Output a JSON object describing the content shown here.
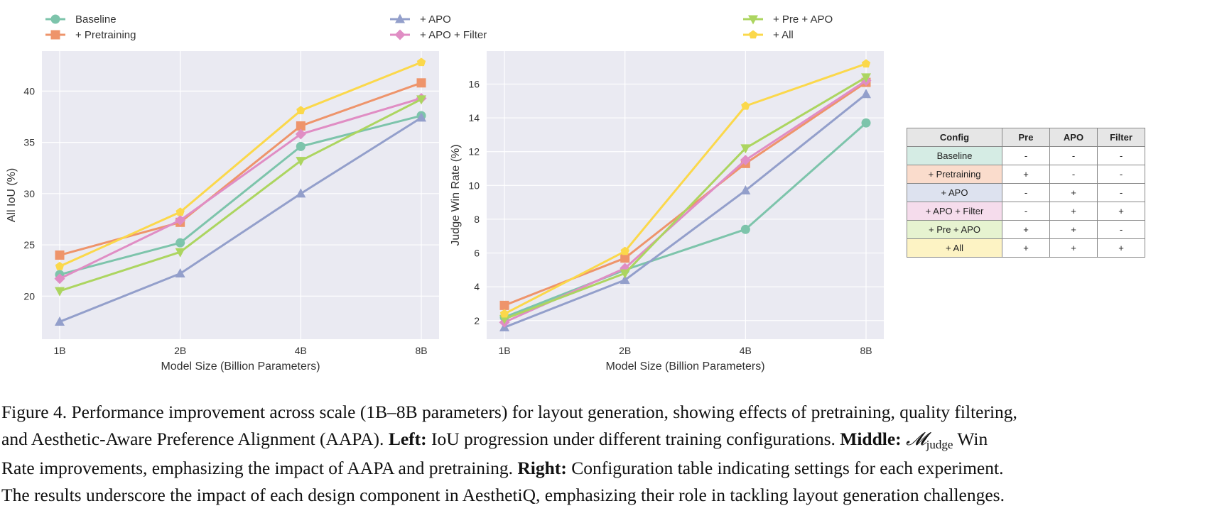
{
  "chart_data": [
    {
      "type": "line",
      "title": "",
      "xlabel": "Model Size (Billion Parameters)",
      "ylabel": "All IoU (%)",
      "categories": [
        "1B",
        "2B",
        "4B",
        "8B"
      ],
      "ylim": [
        15.8,
        43.9
      ],
      "yticks": [
        20,
        25,
        30,
        35,
        40
      ],
      "grid": true,
      "series": [
        {
          "name": "Baseline",
          "values": [
            22.1,
            25.2,
            34.6,
            37.6
          ]
        },
        {
          "name": "+ Pretraining",
          "values": [
            24.0,
            27.2,
            36.6,
            40.8
          ]
        },
        {
          "name": "+ APO",
          "values": [
            17.5,
            22.2,
            30.0,
            37.4
          ]
        },
        {
          "name": "+ APO + Filter",
          "values": [
            21.7,
            27.4,
            35.8,
            39.3
          ]
        },
        {
          "name": "+ Pre + APO",
          "values": [
            20.5,
            24.3,
            33.2,
            39.2
          ]
        },
        {
          "name": "+ All",
          "values": [
            22.9,
            28.2,
            38.1,
            42.8
          ]
        }
      ]
    },
    {
      "type": "line",
      "title": "",
      "xlabel": "Model Size (Billion Parameters)",
      "ylabel": "Judge Win Rate (%)",
      "categories": [
        "1B",
        "2B",
        "4B",
        "8B"
      ],
      "ylim": [
        0.9,
        17.95
      ],
      "yticks": [
        2,
        4,
        6,
        8,
        10,
        12,
        14,
        16
      ],
      "grid": true,
      "series": [
        {
          "name": "Baseline",
          "values": [
            2.2,
            5.0,
            7.4,
            13.7
          ]
        },
        {
          "name": "+ Pretraining",
          "values": [
            2.9,
            5.7,
            11.3,
            16.1
          ]
        },
        {
          "name": "+ APO",
          "values": [
            1.6,
            4.4,
            9.7,
            15.4
          ]
        },
        {
          "name": "+ APO + Filter",
          "values": [
            1.9,
            5.1,
            11.5,
            16.2
          ]
        },
        {
          "name": "+ Pre + APO",
          "values": [
            2.1,
            4.8,
            12.2,
            16.4
          ]
        },
        {
          "name": "+ All",
          "values": [
            2.4,
            6.1,
            14.7,
            17.2
          ]
        }
      ]
    }
  ],
  "series_style": [
    {
      "color": "#7dc4ab",
      "marker": "circle"
    },
    {
      "color": "#ee946b",
      "marker": "square"
    },
    {
      "color": "#939fcb",
      "marker": "triangle-up"
    },
    {
      "color": "#e08dc4",
      "marker": "diamond"
    },
    {
      "color": "#acd560",
      "marker": "triangle-down"
    },
    {
      "color": "#fbd84b",
      "marker": "pentagon"
    }
  ],
  "legend": {
    "placement": "top",
    "entries": [
      "Baseline",
      "+ Pretraining",
      "+ APO",
      "+ APO + Filter",
      "+ Pre + APO",
      "+ All"
    ]
  },
  "table": {
    "headers": [
      "Config",
      "Pre",
      "APO",
      "Filter"
    ],
    "rows": [
      {
        "config": "Baseline",
        "pre": "-",
        "apo": "-",
        "filter": "-",
        "color": "#d5ece4"
      },
      {
        "config": "+ Pretraining",
        "pre": "+",
        "apo": "-",
        "filter": "-",
        "color": "#fadccc"
      },
      {
        "config": "+ APO",
        "pre": "-",
        "apo": "+",
        "filter": "-",
        "color": "#dde2ef"
      },
      {
        "config": "+ APO + Filter",
        "pre": "-",
        "apo": "+",
        "filter": "+",
        "color": "#f5dcec"
      },
      {
        "config": "+ Pre + APO",
        "pre": "+",
        "apo": "+",
        "filter": "-",
        "color": "#e6f3d0"
      },
      {
        "config": "+ All",
        "pre": "+",
        "apo": "+",
        "filter": "+",
        "color": "#fdf3c4"
      }
    ]
  },
  "caption": {
    "figure_label": "Figure 4.",
    "line1": "Performance improvement across scale (1B–8B parameters) for layout generation, showing effects of pretraining, quality filtering,",
    "line2_a": "and Aesthetic-Aware Preference Alignment (AAPA).",
    "left_label": "Left:",
    "line2_b": "IoU progression under different training configurations.",
    "middle_label": "Middle:",
    "math_m": "𝓜",
    "math_sub": "judge",
    "line2_c": "Win",
    "line3_a": "Rate improvements, emphasizing the impact of AAPA and pretraining.",
    "right_label": "Right:",
    "line3_b": "Configuration table indicating settings for each experiment.",
    "line4": "The results underscore the impact of each design component in AesthetiQ, emphasizing their role in tackling layout generation challenges."
  }
}
